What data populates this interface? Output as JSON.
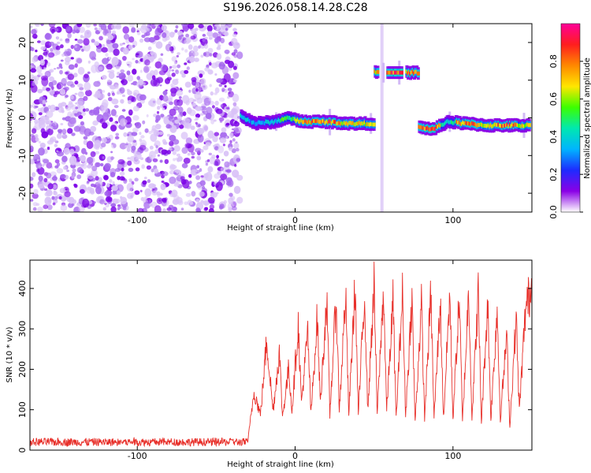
{
  "title": "S196.2026.058.14.28.C28",
  "colors": {
    "frame": "#000000",
    "snr_line": "#e8302a",
    "rainbow": [
      "#ffffff",
      "#8a00e6",
      "#1e2bff",
      "#00b4ff",
      "#00e8b0",
      "#3cff00",
      "#ffe600",
      "#ff8800",
      "#ff1e1e",
      "#ff0099"
    ]
  },
  "chart_data": [
    {
      "name": "spectrogram",
      "type": "heatmap",
      "xlabel": "Height of straight line (km)",
      "ylabel": "Frequency (Hz)",
      "xlim": [
        -168,
        150
      ],
      "ylim": [
        -25,
        25
      ],
      "xticks": [
        -100,
        0,
        100
      ],
      "xtick_labels": [
        "-100",
        "0",
        "100"
      ],
      "yticks": [
        -20,
        -10,
        0,
        10,
        20
      ],
      "ytick_labels": [
        "-20",
        "-10",
        "0",
        "10",
        "20"
      ],
      "noise_region_x": [
        -168,
        -35
      ],
      "signal_track": [
        {
          "x": -34,
          "f": 0.5,
          "a": 0.42
        },
        {
          "x": -25,
          "f": -1.5,
          "a": 0.33
        },
        {
          "x": -12,
          "f": -1.0,
          "a": 0.4
        },
        {
          "x": -5,
          "f": 0.0,
          "a": 0.52
        },
        {
          "x": 5,
          "f": -1.0,
          "a": 0.8
        },
        {
          "x": 18,
          "f": -1.0,
          "a": 0.82
        },
        {
          "x": 35,
          "f": -1.5,
          "a": 0.75
        },
        {
          "x": 50,
          "f": -1.5,
          "a": 0.7
        },
        {
          "x": 63,
          "f": 12.0,
          "a": 0.86
        },
        {
          "x": 78,
          "f": -2.5,
          "a": 0.8
        },
        {
          "x": 88,
          "f": -3.0,
          "a": 0.85
        },
        {
          "x": 97,
          "f": -1.0,
          "a": 0.45
        },
        {
          "x": 108,
          "f": -1.5,
          "a": 0.82
        },
        {
          "x": 122,
          "f": -2.0,
          "a": 0.68
        },
        {
          "x": 135,
          "f": -2.0,
          "a": 0.82
        },
        {
          "x": 147,
          "f": -2.0,
          "a": 0.7
        }
      ],
      "colorbar": {
        "label": "Normalized spectral amplitude",
        "range": [
          0,
          1
        ],
        "ticks": [
          0.0,
          0.2,
          0.4,
          0.6,
          0.8
        ],
        "tick_labels": [
          "0.0",
          "0.2",
          "0.4",
          "0.6",
          "0.8"
        ]
      }
    },
    {
      "name": "snr",
      "type": "line",
      "xlabel": "Height of straight line (km)",
      "ylabel": "SNR (10 * v/v)",
      "xlim": [
        -168,
        150
      ],
      "ylim": [
        0,
        470
      ],
      "xticks": [
        -100,
        0,
        100
      ],
      "xtick_labels": [
        "-100",
        "0",
        "100"
      ],
      "yticks": [
        0,
        100,
        200,
        300,
        400
      ],
      "ytick_labels": [
        "0",
        "100",
        "200",
        "300",
        "400"
      ],
      "x": [
        -168,
        -30,
        -26,
        -22,
        -18,
        -14,
        -10,
        -8,
        -4,
        -2,
        2,
        4,
        8,
        10,
        14,
        16,
        20,
        22,
        26,
        28,
        32,
        34,
        38,
        40,
        44,
        46,
        50,
        52,
        56,
        58,
        62,
        64,
        68,
        70,
        74,
        76,
        80,
        82,
        86,
        88,
        92,
        94,
        98,
        100,
        104,
        106,
        110,
        112,
        116,
        118,
        122,
        124,
        128,
        130,
        134,
        136,
        140,
        142,
        146,
        150
      ],
      "y": [
        15,
        20,
        150,
        90,
        280,
        100,
        250,
        85,
        210,
        100,
        320,
        120,
        300,
        90,
        340,
        120,
        390,
        90,
        390,
        100,
        400,
        90,
        420,
        90,
        400,
        100,
        420,
        90,
        410,
        100,
        380,
        80,
        400,
        90,
        390,
        70,
        370,
        80,
        400,
        80,
        380,
        80,
        400,
        80,
        390,
        70,
        410,
        80,
        400,
        70,
        380,
        80,
        360,
        80,
        290,
        60,
        340,
        100,
        360,
        420
      ],
      "baseline_noise": [
        10,
        30
      ]
    }
  ]
}
